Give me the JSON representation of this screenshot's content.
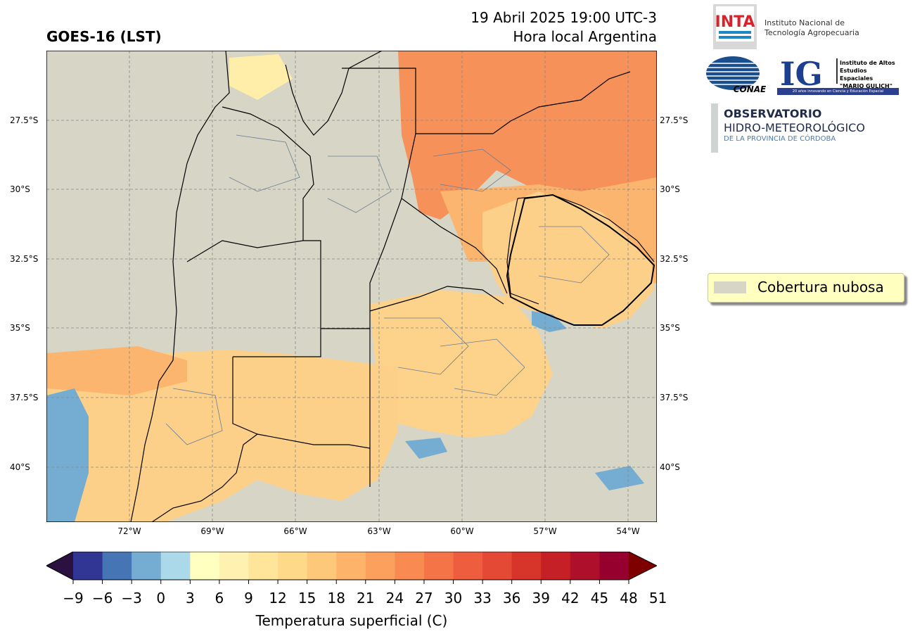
{
  "header": {
    "title_left": "GOES-16 (LST)",
    "title_right_line1": "19 Abril 2025 19:00 UTC-3",
    "title_right_line2": "Hora local Argentina"
  },
  "map": {
    "lat_labels": [
      "27.5°S",
      "30°S",
      "32.5°S",
      "35°S",
      "37.5°S",
      "40°S"
    ],
    "lon_labels": [
      "72°W",
      "69°W",
      "66°W",
      "63°W",
      "60°W",
      "57°W",
      "54°W"
    ],
    "cloud_color": "#d6d5c6"
  },
  "legend": {
    "label": "Cobertura nubosa"
  },
  "colorbar": {
    "ticks": [
      "−9",
      "−6",
      "−3",
      "0",
      "3",
      "6",
      "9",
      "12",
      "15",
      "18",
      "21",
      "24",
      "27",
      "30",
      "33",
      "36",
      "39",
      "42",
      "45",
      "48",
      "51"
    ],
    "label": "Temperatura superficial (C)",
    "colors": [
      "#313695",
      "#4575b4",
      "#74add1",
      "#abd9e9",
      "#ffffbf",
      "#fff2b0",
      "#ffe59a",
      "#fed98a",
      "#fec87a",
      "#fdb46a",
      "#fca05e",
      "#f98b52",
      "#f57447",
      "#ee5e3e",
      "#e34934",
      "#d7342a",
      "#c42025",
      "#ae0f2a",
      "#95002e"
    ],
    "over_color": "#7f0000",
    "under_color": "#2a1140"
  },
  "logos": {
    "inta_mark": "INTA",
    "inta_line1": "Instituto Nacional de",
    "inta_line2": "Tecnología Agropecuaria",
    "conae_mark": "CONAE",
    "ig_mark": "IG",
    "ig_line1": "Instituto de Altos",
    "ig_line2": "Estudios Espaciales",
    "ig_line3": "\"MARIO GULICH\"",
    "ig_tagline": "20 años innovando en Ciencia y Educación Espacial",
    "obs_line1": "OBSERVATORIO",
    "obs_line2": "HIDRO-METEOROLÓGICO",
    "obs_line3": "DE LA PROVINCIA DE CÓRDOBA"
  }
}
